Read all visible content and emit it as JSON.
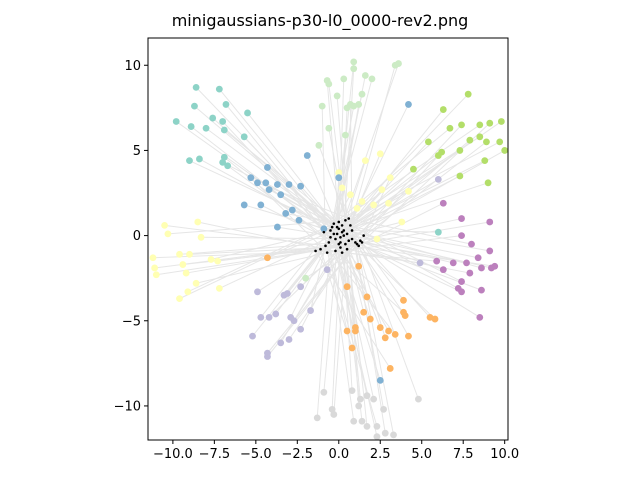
{
  "chart_data": {
    "type": "scatter",
    "title": "minigaussians-p30-l0_0000-rev2.png",
    "xlabel": "",
    "ylabel": "",
    "xlim": [
      -11.5,
      10.2
    ],
    "ylim": [
      -12.0,
      11.6
    ],
    "xticks": [
      -10.0,
      -7.5,
      -5.0,
      -2.5,
      0.0,
      2.5,
      5.0,
      7.5,
      10.0
    ],
    "xtick_labels": [
      "−10.0",
      "−7.5",
      "−5.0",
      "−2.5",
      "0.0",
      "2.5",
      "5.0",
      "7.5",
      "10.0"
    ],
    "yticks": [
      -10,
      -5,
      0,
      5,
      10
    ],
    "ytick_labels": [
      "−10",
      "−5",
      "0",
      "5",
      "10"
    ],
    "grid": false,
    "legend": "none",
    "connector_color": "#e6e6e6",
    "center_color": "#000000",
    "series": [
      {
        "color": "#8dd3c7",
        "points": [
          [
            -8.6,
            8.7
          ],
          [
            -7.2,
            8.6
          ],
          [
            -8.7,
            7.6
          ],
          [
            -6.8,
            7.7
          ],
          [
            -5.5,
            7.2
          ],
          [
            -9.8,
            6.7
          ],
          [
            -7.6,
            6.9
          ],
          [
            -8.9,
            6.4
          ],
          [
            -8.0,
            6.3
          ],
          [
            -7.0,
            6.7
          ],
          [
            -6.9,
            6.2
          ],
          [
            -5.7,
            5.8
          ],
          [
            -9.0,
            4.4
          ],
          [
            -8.4,
            4.5
          ],
          [
            -6.9,
            4.6
          ],
          [
            -7.0,
            4.3
          ],
          [
            -6.7,
            4.1
          ],
          [
            6.0,
            0.2
          ]
        ]
      },
      {
        "color": "#ffffb3",
        "points": [
          [
            -10.5,
            0.6
          ],
          [
            -10.3,
            0.1
          ],
          [
            -11.2,
            -1.3
          ],
          [
            -11.1,
            -1.9
          ],
          [
            -11.0,
            -2.3
          ],
          [
            -9.6,
            -1.1
          ],
          [
            -9.0,
            -1.1
          ],
          [
            -9.4,
            -1.7
          ],
          [
            -9.2,
            -2.2
          ],
          [
            -8.6,
            -2.8
          ],
          [
            -9.6,
            -3.7
          ],
          [
            -9.1,
            -3.3
          ],
          [
            -8.5,
            0.8
          ],
          [
            -8.3,
            -0.1
          ],
          [
            -7.7,
            -1.4
          ],
          [
            -7.3,
            -1.5
          ],
          [
            -7.2,
            -3.1
          ],
          [
            0.0,
            3.7
          ],
          [
            0.2,
            2.8
          ],
          [
            0.7,
            2.4
          ],
          [
            1.6,
            4.4
          ],
          [
            2.5,
            4.8
          ],
          [
            3.1,
            3.4
          ],
          [
            4.2,
            2.6
          ],
          [
            2.6,
            2.7
          ],
          [
            3.0,
            1.9
          ],
          [
            3.8,
            0.8
          ],
          [
            2.3,
            -0.2
          ],
          [
            1.1,
            1.6
          ],
          [
            2.1,
            1.8
          ],
          [
            1.4,
            2.0
          ]
        ]
      },
      {
        "color": "#bebada",
        "points": [
          [
            -4.9,
            -3.3
          ],
          [
            -3.3,
            -3.5
          ],
          [
            -3.1,
            -3.4
          ],
          [
            -2.3,
            -3.0
          ],
          [
            -4.7,
            -4.8
          ],
          [
            -4.2,
            -4.8
          ],
          [
            -3.8,
            -4.6
          ],
          [
            -2.9,
            -4.8
          ],
          [
            -2.7,
            -5.0
          ],
          [
            -2.3,
            -5.5
          ],
          [
            -1.7,
            -4.4
          ],
          [
            -5.2,
            -5.9
          ],
          [
            -3.5,
            -6.3
          ],
          [
            -3.0,
            -6.1
          ],
          [
            -4.3,
            -6.9
          ],
          [
            -4.3,
            -7.1
          ],
          [
            -0.7,
            -2.0
          ],
          [
            4.9,
            -1.6
          ],
          [
            6.0,
            3.3
          ]
        ]
      },
      {
        "color": "#fb8072",
        "points": []
      },
      {
        "color": "#80b1d3",
        "points": [
          [
            -5.3,
            3.4
          ],
          [
            -4.9,
            3.1
          ],
          [
            -4.4,
            3.1
          ],
          [
            -4.3,
            4.0
          ],
          [
            -3.7,
            3.0
          ],
          [
            -3.0,
            3.0
          ],
          [
            -3.5,
            2.4
          ],
          [
            -4.2,
            2.7
          ],
          [
            -2.3,
            2.9
          ],
          [
            -1.9,
            4.7
          ],
          [
            -5.7,
            1.8
          ],
          [
            -4.7,
            1.8
          ],
          [
            -3.2,
            1.3
          ],
          [
            -2.8,
            1.5
          ],
          [
            -2.4,
            0.9
          ],
          [
            -3.7,
            0.5
          ],
          [
            -0.9,
            0.4
          ],
          [
            0.0,
            3.4
          ],
          [
            4.2,
            7.7
          ],
          [
            2.5,
            -8.5
          ]
        ]
      },
      {
        "color": "#fdb462",
        "points": [
          [
            -4.3,
            -1.3
          ],
          [
            1.2,
            -1.8
          ],
          [
            0.5,
            -3.0
          ],
          [
            1.7,
            -3.6
          ],
          [
            1.5,
            -4.5
          ],
          [
            1.9,
            -4.9
          ],
          [
            1.0,
            -5.4
          ],
          [
            1.0,
            -5.6
          ],
          [
            0.5,
            -5.6
          ],
          [
            2.5,
            -5.4
          ],
          [
            3.0,
            -5.6
          ],
          [
            2.8,
            -6.0
          ],
          [
            3.4,
            -5.8
          ],
          [
            3.9,
            -3.8
          ],
          [
            3.9,
            -4.5
          ],
          [
            4.0,
            -4.7
          ],
          [
            4.2,
            -5.9
          ],
          [
            5.5,
            -4.8
          ],
          [
            5.8,
            -4.9
          ],
          [
            0.8,
            -6.6
          ],
          [
            3.1,
            -7.8
          ]
        ]
      },
      {
        "color": "#b3de69",
        "points": [
          [
            6.3,
            7.4
          ],
          [
            7.8,
            8.3
          ],
          [
            6.7,
            6.3
          ],
          [
            7.4,
            6.5
          ],
          [
            7.9,
            5.6
          ],
          [
            8.5,
            6.5
          ],
          [
            9.1,
            6.6
          ],
          [
            9.8,
            6.7
          ],
          [
            8.5,
            5.8
          ],
          [
            8.9,
            5.5
          ],
          [
            9.7,
            5.5
          ],
          [
            10.0,
            5.0
          ],
          [
            5.4,
            5.5
          ],
          [
            6.2,
            4.9
          ],
          [
            6.0,
            4.7
          ],
          [
            7.3,
            5.0
          ],
          [
            8.8,
            4.4
          ],
          [
            4.5,
            3.9
          ],
          [
            7.3,
            3.5
          ],
          [
            9.0,
            3.1
          ]
        ]
      },
      {
        "color": "#d9d9d9",
        "points": [
          [
            -0.9,
            -9.2
          ],
          [
            -0.4,
            -10.2
          ],
          [
            -0.3,
            -10.5
          ],
          [
            -1.3,
            -10.7
          ],
          [
            0.8,
            -9.1
          ],
          [
            1.3,
            -9.6
          ],
          [
            1.7,
            -9.4
          ],
          [
            1.2,
            -10.0
          ],
          [
            0.9,
            -10.9
          ],
          [
            1.4,
            -10.9
          ],
          [
            2.1,
            -9.6
          ],
          [
            2.7,
            -10.2
          ],
          [
            2.3,
            -11.2
          ],
          [
            1.7,
            -11.2
          ],
          [
            2.3,
            -11.8
          ],
          [
            2.8,
            -11.6
          ],
          [
            3.3,
            -11.7
          ],
          [
            4.8,
            -9.6
          ]
        ]
      },
      {
        "color": "#bc80bd",
        "points": [
          [
            6.3,
            1.9
          ],
          [
            7.4,
            1.0
          ],
          [
            9.1,
            0.8
          ],
          [
            7.4,
            0.0
          ],
          [
            8.0,
            -0.5
          ],
          [
            9.1,
            -0.9
          ],
          [
            5.9,
            -1.5
          ],
          [
            6.3,
            -2.0
          ],
          [
            6.9,
            -1.6
          ],
          [
            7.7,
            -1.6
          ],
          [
            8.4,
            -1.3
          ],
          [
            8.6,
            -1.9
          ],
          [
            7.9,
            -2.2
          ],
          [
            9.2,
            -1.9
          ],
          [
            9.4,
            -1.8
          ],
          [
            7.4,
            -2.7
          ],
          [
            7.2,
            -3.1
          ],
          [
            7.4,
            -3.3
          ],
          [
            8.6,
            -3.2
          ],
          [
            8.5,
            -4.8
          ]
        ]
      },
      {
        "color": "#ccebc5",
        "points": [
          [
            0.9,
            10.2
          ],
          [
            0.9,
            9.8
          ],
          [
            1.6,
            9.4
          ],
          [
            0.3,
            9.2
          ],
          [
            -0.7,
            9.1
          ],
          [
            -0.6,
            8.9
          ],
          [
            2.0,
            9.2
          ],
          [
            3.6,
            10.1
          ],
          [
            3.4,
            10.0
          ],
          [
            1.4,
            8.3
          ],
          [
            -0.1,
            8.2
          ],
          [
            0.9,
            7.6
          ],
          [
            1.2,
            7.7
          ],
          [
            0.5,
            7.5
          ],
          [
            0.7,
            7.7
          ],
          [
            -1.0,
            7.6
          ],
          [
            -0.6,
            6.3
          ],
          [
            0.4,
            5.9
          ],
          [
            -1.2,
            5.3
          ],
          [
            -2.0,
            -2.5
          ]
        ]
      }
    ],
    "centers": [
      [
        -0.1,
        0.1
      ],
      [
        0.1,
        -0.1
      ],
      [
        0.2,
        0.2
      ],
      [
        -0.2,
        -0.2
      ],
      [
        0.3,
        0.0
      ],
      [
        -0.3,
        0.1
      ],
      [
        0.0,
        0.4
      ],
      [
        0.1,
        -0.4
      ],
      [
        0.5,
        0.1
      ],
      [
        -0.5,
        -0.1
      ],
      [
        0.2,
        0.6
      ],
      [
        0.4,
        -0.5
      ],
      [
        -0.4,
        0.5
      ],
      [
        0.6,
        -0.3
      ],
      [
        -0.6,
        -0.4
      ],
      [
        0.0,
        0.8
      ],
      [
        0.1,
        -0.7
      ],
      [
        0.8,
        0.3
      ],
      [
        -0.8,
        -0.6
      ],
      [
        0.4,
        0.9
      ],
      [
        -0.2,
        -0.9
      ],
      [
        1.0,
        -0.4
      ],
      [
        1.1,
        -0.5
      ],
      [
        1.3,
        -0.3
      ],
      [
        1.2,
        -0.6
      ],
      [
        -1.1,
        -0.8
      ],
      [
        -1.4,
        -0.9
      ],
      [
        -0.7,
        -1.0
      ],
      [
        0.6,
        1.0
      ],
      [
        -0.3,
        0.7
      ],
      [
        0.2,
        -1.0
      ],
      [
        0.8,
        -0.2
      ],
      [
        -0.9,
        0.2
      ],
      [
        1.4,
        -0.4
      ],
      [
        0.3,
        0.3
      ],
      [
        -0.1,
        0.5
      ],
      [
        0.5,
        -0.8
      ],
      [
        -0.5,
        0.3
      ],
      [
        0.0,
        -0.5
      ],
      [
        0.7,
        0.6
      ],
      [
        1.5,
        0.0
      ]
    ]
  }
}
